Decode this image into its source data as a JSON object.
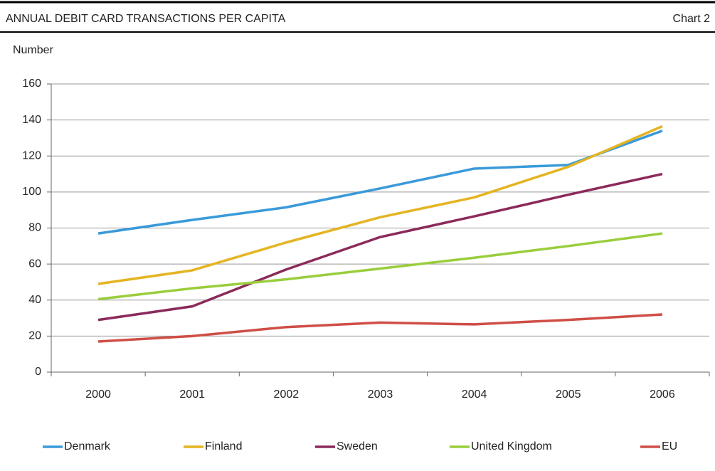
{
  "chart_data": {
    "type": "line",
    "title": "ANNUAL DEBIT CARD TRANSACTIONS PER CAPITA",
    "chart_label": "Chart 2",
    "y_axis_label": "Number",
    "categories": [
      "2000",
      "2001",
      "2002",
      "2003",
      "2004",
      "2005",
      "2006"
    ],
    "series": [
      {
        "name": "Denmark",
        "color": "#3a9ad9",
        "values": [
          77,
          84.5,
          91.5,
          102,
          113,
          115,
          134
        ]
      },
      {
        "name": "Finland",
        "color": "#e4b422",
        "values": [
          49,
          56.5,
          72,
          86,
          97,
          114,
          136.5
        ]
      },
      {
        "name": "Sweden",
        "color": "#8b2a5a",
        "values": [
          29,
          36.5,
          57,
          75,
          86.5,
          98.5,
          110
        ]
      },
      {
        "name": "United Kingdom",
        "color": "#9acd3c",
        "values": [
          40.5,
          46.5,
          51.5,
          57.5,
          63.5,
          70,
          77
        ]
      },
      {
        "name": "EU",
        "color": "#cf4e46",
        "values": [
          17,
          20,
          25,
          27.5,
          26.5,
          29,
          32
        ]
      }
    ],
    "ylim": [
      0,
      160
    ],
    "yticks": [
      0,
      20,
      40,
      60,
      80,
      100,
      120,
      140,
      160
    ],
    "grid": true
  }
}
